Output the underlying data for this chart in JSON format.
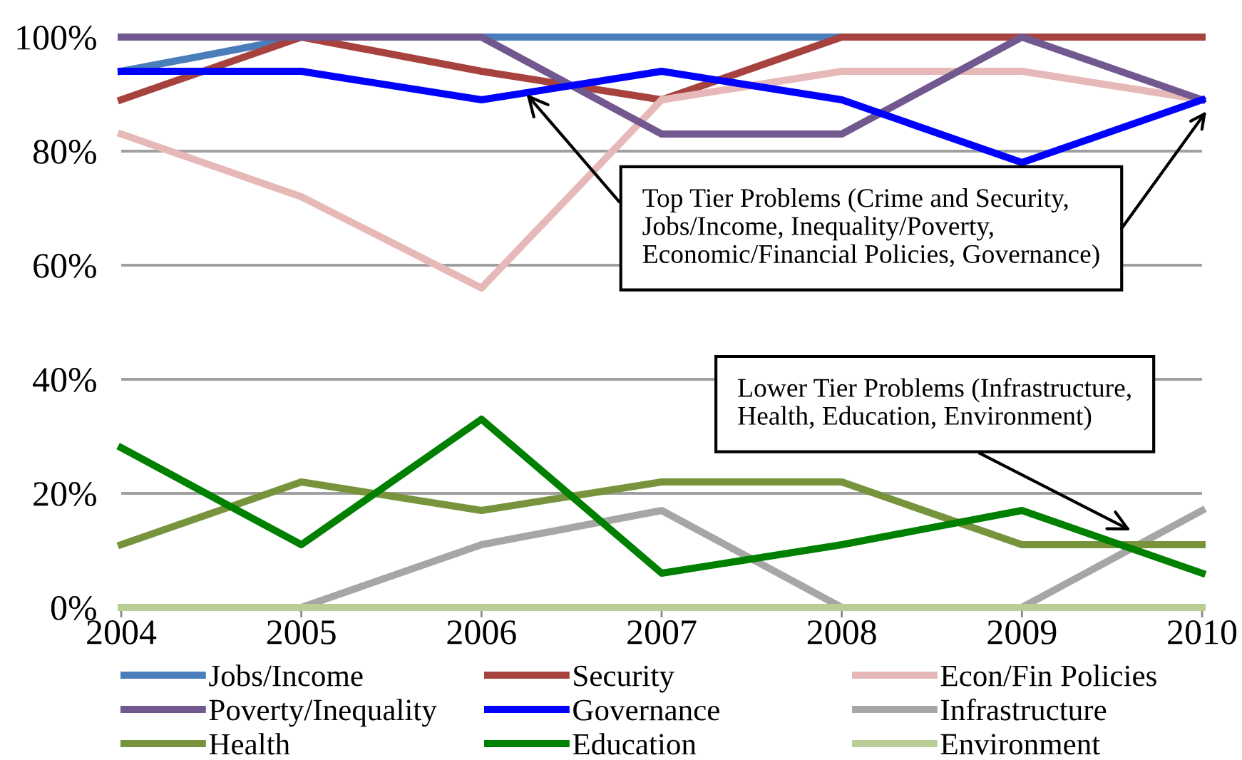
{
  "chart_data": {
    "type": "line",
    "x": [
      2004,
      2005,
      2006,
      2007,
      2008,
      2009,
      2010
    ],
    "xlim": [
      2004,
      2010
    ],
    "xticks": [
      2004,
      2005,
      2006,
      2007,
      2008,
      2009,
      2010
    ],
    "ylim": [
      0,
      100
    ],
    "yticks": [
      {
        "value": 0,
        "label": "0%"
      },
      {
        "value": 20,
        "label": "20%"
      },
      {
        "value": 40,
        "label": "40%"
      },
      {
        "value": 60,
        "label": "60%"
      },
      {
        "value": 80,
        "label": "80%"
      },
      {
        "value": 100,
        "label": "100%"
      }
    ],
    "grid": "y",
    "legend": "bottom",
    "series": [
      {
        "name": "Jobs/Income",
        "color": "#4a7ebb",
        "values": [
          94,
          100,
          100,
          100,
          100,
          null,
          null
        ]
      },
      {
        "name": "Security",
        "color": "#a8423f",
        "values": [
          89,
          100,
          94,
          89,
          100,
          100,
          100
        ]
      },
      {
        "name": "Econ/Fin Policies",
        "color": "#e6b9b8",
        "values": [
          83,
          72,
          56,
          89,
          94,
          94,
          89
        ]
      },
      {
        "name": "Poverty/Inequality",
        "color": "#71588f",
        "values": [
          100,
          100,
          100,
          83,
          83,
          100,
          89
        ]
      },
      {
        "name": "Governance",
        "color": "#0000ff",
        "values": [
          94,
          94,
          89,
          94,
          89,
          78,
          89
        ]
      },
      {
        "name": "Infrastructure",
        "color": "#a6a6a6",
        "values": [
          null,
          0,
          11,
          17,
          0,
          0,
          17
        ]
      },
      {
        "name": "Health",
        "color": "#77933c",
        "values": [
          11,
          22,
          17,
          22,
          22,
          11,
          11
        ]
      },
      {
        "name": "Education",
        "color": "#008000",
        "values": [
          28,
          11,
          33,
          6,
          11,
          17,
          6
        ]
      },
      {
        "name": "Environment",
        "color": "#b9cd96",
        "values": [
          0,
          0,
          0,
          0,
          0,
          0,
          0
        ]
      }
    ],
    "annotations": [
      {
        "text": "Top Tier Problems (Crime and Security,\nJobs/Income, Inequality/Poverty,\nEconomic/Financial Policies, Governance)",
        "x": 2006.25,
        "y": 90
      },
      "Lower Tier Problems (Infrastructure,\nHealth, Education, Environment)"
    ]
  }
}
